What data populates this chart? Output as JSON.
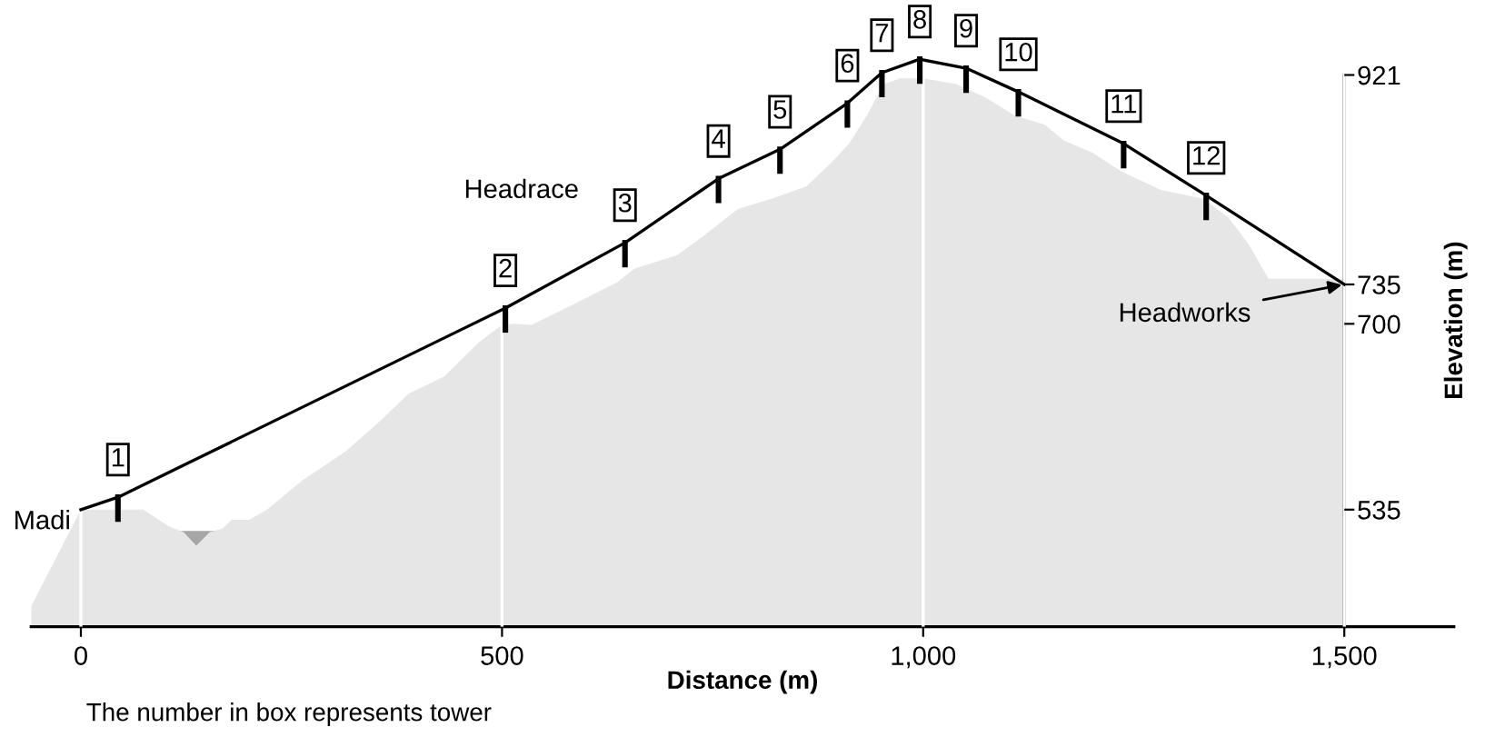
{
  "chart_data": {
    "type": "area",
    "xlabel": "Distance (m)",
    "ylabel": "Elevation (m)",
    "xlim": [
      -59,
      1630
    ],
    "ylim": [
      431,
      975
    ],
    "xticks": [
      0,
      500,
      {
        "value": 1000,
        "label": "1,000"
      },
      {
        "value": 1500,
        "label": "1,500"
      }
    ],
    "yticks": [
      535,
      700,
      735,
      921
    ],
    "grid": "x",
    "series": [
      {
        "color": "#a6a6a6",
        "x": [
          111,
          137,
          160
        ],
        "values": [
          516,
          516,
          516
        ]
      },
      {
        "color": "#e6e6e6",
        "x": [
          -59,
          0,
          11,
          74,
          105,
          122,
          137,
          153,
          168,
          179,
          200,
          221,
          263,
          315,
          357,
          389,
          431,
          473,
          500,
          514,
          535,
          576,
          637,
          657,
          708,
          739,
          780,
          820,
          861,
          892,
          912,
          933,
          953,
          973,
          1000,
          1039,
          1074,
          1109,
          1144,
          1167,
          1201,
          1236,
          1282,
          1333,
          1363,
          1387,
          1410,
          1444,
          1500
        ],
        "values": [
          449,
          535,
          535,
          535,
          520,
          515,
          503,
          515,
          518,
          526,
          526,
          535,
          561,
          587,
          615,
          638,
          653,
          684,
          699,
          700,
          699,
          714,
          737,
          749,
          761,
          778,
          802,
          811,
          822,
          844,
          860,
          885,
          913,
          918,
          918,
          913,
          901,
          885,
          877,
          863,
          852,
          835,
          819,
          811,
          794,
          770,
          740,
          740,
          740
        ]
      },
      {
        "type": "line",
        "color": "#000000",
        "x": [
          0,
          44,
          504,
          646,
          757,
          830,
          910,
          951,
          996,
          1051,
          1113,
          1238,
          1336,
          1500
        ],
        "values": [
          535,
          546,
          714,
          772,
          829,
          855,
          896,
          923,
          935,
          927,
          906,
          860,
          814,
          735
        ]
      }
    ],
    "annotations": [
      {
        "text": "Madi",
        "x": 0,
        "y": 535
      },
      {
        "text": "Headworks",
        "x": 1500,
        "y": 735
      },
      "Headrace",
      "The number in box represents tower",
      {
        "text": "1",
        "x": 44,
        "y": 546
      },
      {
        "text": "2",
        "x": 504,
        "y": 714
      },
      {
        "text": "3",
        "x": 646,
        "y": 772
      },
      {
        "text": "4",
        "x": 757,
        "y": 829
      },
      {
        "text": "5",
        "x": 830,
        "y": 855
      },
      {
        "text": "6",
        "x": 910,
        "y": 896
      },
      {
        "text": "7",
        "x": 951,
        "y": 923
      },
      {
        "text": "8",
        "x": 996,
        "y": 935
      },
      {
        "text": "9",
        "x": 1051,
        "y": 927
      },
      {
        "text": "10",
        "x": 1113,
        "y": 906
      },
      {
        "text": "11",
        "x": 1238,
        "y": 860
      },
      {
        "text": "12",
        "x": 1336,
        "y": 814
      }
    ]
  }
}
